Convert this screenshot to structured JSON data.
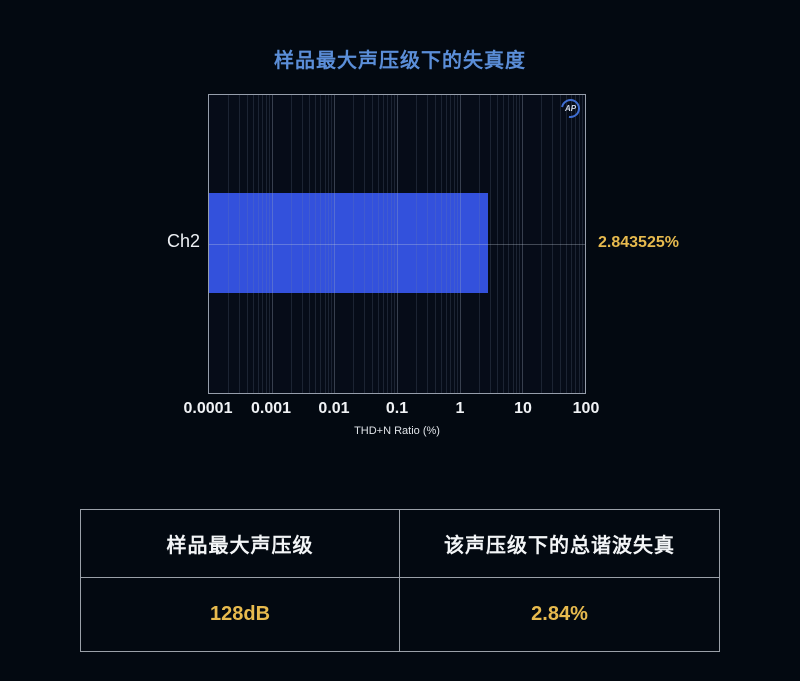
{
  "title": "样品最大声压级下的失真度",
  "chart_data": {
    "type": "bar",
    "orientation": "horizontal",
    "categories": [
      "Ch2"
    ],
    "values": [
      2.843525
    ],
    "value_labels": [
      "2.843525%"
    ],
    "xlabel": "THD+N Ratio (%)",
    "x_scale": "log",
    "xlim": [
      0.0001,
      100
    ],
    "x_ticks": [
      "0.0001",
      "0.001",
      "0.01",
      "0.1",
      "1",
      "10",
      "100"
    ],
    "grid": "log minor + major verticals, single horizontal centerline",
    "legend": "none",
    "bar_color": "#3351dc",
    "logo_text": "AP"
  },
  "table": {
    "headers": [
      "样品最大声压级",
      "该声压级下的总谐波失真"
    ],
    "values": [
      "128dB",
      "2.84%"
    ]
  },
  "colors": {
    "page_bg": "#030911",
    "title_blue": "#5b8ed8",
    "bar_blue": "#3351dc",
    "accent_gold": "#e7ba4e",
    "text_white": "#f0f2f5",
    "border_gray": "#9aa0a8"
  }
}
